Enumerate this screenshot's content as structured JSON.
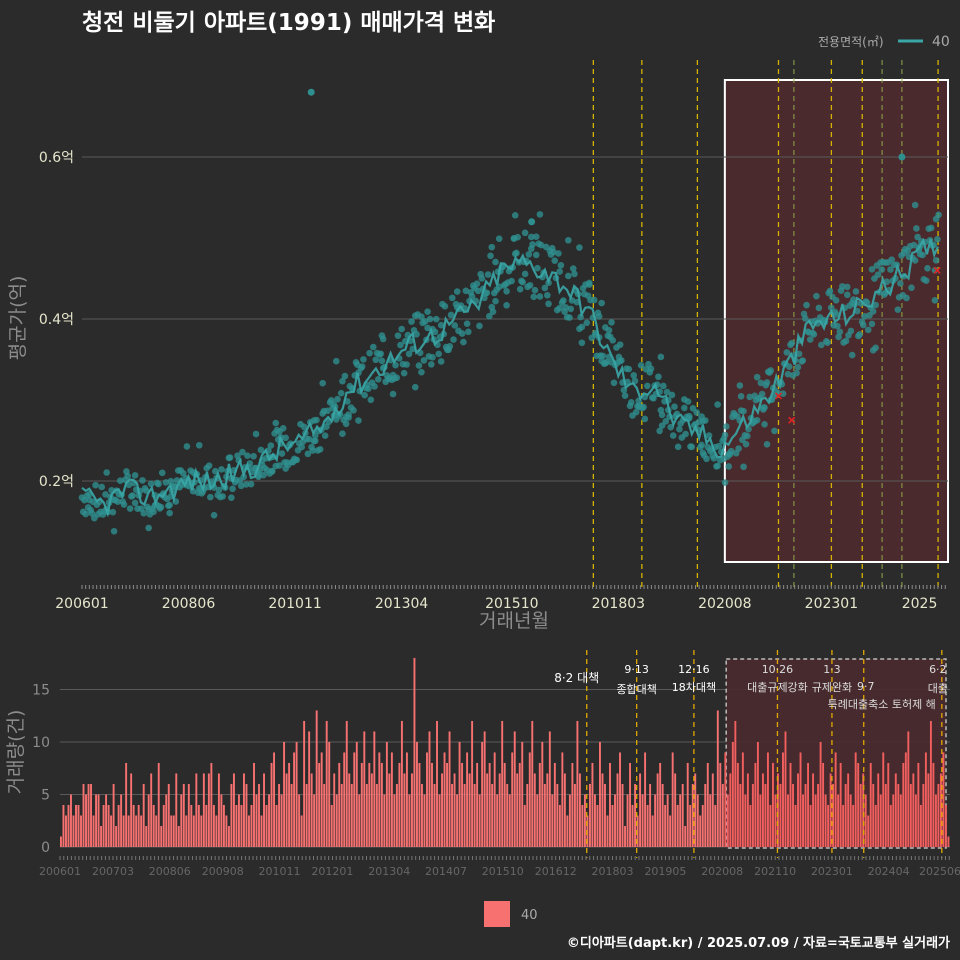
{
  "title": "청전 비둘기 아파트(1991) 매매가격 변화",
  "footer": "©디아파트(dapt.kr) / 2025.07.09 / 자료=국토교통부 실거래가",
  "colors": {
    "background": "#2b2b2c",
    "price_line": "#3aa6a6",
    "price_point": "#2f8f8f",
    "volume_bar": "#f87171",
    "highlight_fill": "#4a2a2d",
    "policy_line": "#d4b400",
    "grid": "#5a5a5a",
    "axis_text": "#e6e6cc",
    "title_text": "#ffffff",
    "marker_red": "#dd2222"
  },
  "chart_data": [
    {
      "type": "line",
      "title": "청전 비둘기 아파트(1991) 매매가격 변화",
      "xlabel": "거래년월",
      "ylabel": "평균가(억)",
      "x_ticks": [
        "200601",
        "200806",
        "201011",
        "201304",
        "201510",
        "201803",
        "202008",
        "202301",
        "2025"
      ],
      "y_ticks": [
        "0.2억",
        "0.4억",
        "0.6억"
      ],
      "ylim": [
        0.08,
        0.7
      ],
      "legend_title": "전용면적(㎡)",
      "legend_entry": "40",
      "legend_position": "top-right",
      "series": [
        {
          "name": "40",
          "x": [
            "2006.0",
            "2006.5",
            "2007.0",
            "2007.5",
            "2008.0",
            "2008.5",
            "2009.0",
            "2009.5",
            "2010.0",
            "2010.5",
            "2011.0",
            "2011.5",
            "2012.0",
            "2012.5",
            "2013.0",
            "2013.5",
            "2014.0",
            "2014.5",
            "2015.0",
            "2015.5",
            "2016.0",
            "2016.5",
            "2017.0",
            "2017.5",
            "2018.0",
            "2018.5",
            "2019.0",
            "2019.5",
            "2020.0",
            "2020.5",
            "2021.0",
            "2021.5",
            "2022.0",
            "2022.5",
            "2023.0",
            "2023.5",
            "2024.0",
            "2024.5",
            "2025.0",
            "2025.5"
          ],
          "values": [
            0.18,
            0.17,
            0.19,
            0.18,
            0.19,
            0.2,
            0.2,
            0.21,
            0.22,
            0.24,
            0.25,
            0.27,
            0.31,
            0.33,
            0.35,
            0.37,
            0.38,
            0.4,
            0.42,
            0.46,
            0.47,
            0.46,
            0.44,
            0.41,
            0.35,
            0.31,
            0.32,
            0.27,
            0.26,
            0.24,
            0.27,
            0.3,
            0.34,
            0.39,
            0.4,
            0.41,
            0.43,
            0.45,
            0.48,
            0.5
          ]
        }
      ],
      "outliers": [
        [
          2011.2,
          0.68
        ],
        [
          2016.2,
          0.52
        ],
        [
          2024.6,
          0.6
        ]
      ],
      "red_markers": [
        [
          2021.8,
          0.305
        ],
        [
          2022.1,
          0.275
        ],
        [
          2025.4,
          0.46
        ]
      ],
      "highlight_range": [
        "202008",
        "2025"
      ]
    },
    {
      "type": "bar",
      "xlabel": "",
      "ylabel": "거래량(건)",
      "x_ticks": [
        "200601",
        "200703",
        "200806",
        "200908",
        "201011",
        "201201",
        "201304",
        "201407",
        "201510",
        "201612",
        "201803",
        "201905",
        "202008",
        "202110",
        "202301",
        "202404",
        "202506"
      ],
      "y_ticks": [
        "0",
        "5",
        "10",
        "15"
      ],
      "ylim": [
        0,
        18
      ],
      "legend_entry": "40",
      "legend_position": "bottom",
      "series": [
        {
          "name": "40",
          "values": [
            1,
            4,
            3,
            4,
            5,
            3,
            4,
            4,
            3,
            6,
            5,
            6,
            6,
            3,
            5,
            5,
            2,
            4,
            5,
            4,
            3,
            6,
            2,
            4,
            5,
            3,
            8,
            3,
            7,
            4,
            3,
            4,
            3,
            6,
            2,
            5,
            7,
            4,
            3,
            8,
            2,
            4,
            5,
            6,
            3,
            3,
            7,
            2,
            5,
            6,
            3,
            6,
            4,
            3,
            7,
            4,
            3,
            7,
            4,
            7,
            8,
            4,
            3,
            7,
            5,
            4,
            3,
            2,
            6,
            7,
            4,
            5,
            4,
            7,
            6,
            3,
            4,
            8,
            5,
            6,
            3,
            7,
            4,
            5,
            8,
            9,
            4,
            6,
            5,
            10,
            7,
            8,
            6,
            9,
            10,
            5,
            3,
            12,
            6,
            11,
            7,
            5,
            13,
            8,
            9,
            6,
            12,
            10,
            4,
            7,
            5,
            8,
            6,
            9,
            12,
            7,
            6,
            9,
            10,
            5,
            8,
            11,
            6,
            8,
            7,
            11,
            6,
            9,
            8,
            5,
            10,
            7,
            9,
            5,
            6,
            8,
            12,
            7,
            9,
            5,
            7,
            18,
            10,
            8,
            6,
            5,
            9,
            11,
            8,
            6,
            12,
            5,
            7,
            9,
            8,
            11,
            6,
            7,
            5,
            10,
            8,
            6,
            9,
            7,
            12,
            6,
            8,
            5,
            10,
            11,
            7,
            8,
            6,
            9,
            5,
            7,
            12,
            8,
            6,
            5,
            9,
            11,
            7,
            8,
            10,
            4,
            6,
            9,
            12,
            7,
            5,
            8,
            10,
            6,
            7,
            11,
            5,
            8,
            6,
            4,
            9,
            7,
            3,
            5,
            8,
            6,
            12,
            7,
            4,
            5,
            3,
            6,
            8,
            5,
            4,
            10,
            7,
            6,
            3,
            8,
            4,
            5,
            7,
            9,
            6,
            2,
            5,
            8,
            4,
            6,
            3,
            7,
            5,
            9,
            4,
            6,
            3,
            5,
            7,
            8,
            6,
            4,
            5,
            3,
            9,
            7,
            4,
            5,
            6,
            2,
            8,
            4,
            6,
            7,
            5,
            3,
            4,
            6,
            8,
            5,
            7,
            4,
            13,
            8,
            6,
            9,
            5,
            7,
            10,
            12,
            8,
            6,
            9,
            5,
            7,
            4,
            6,
            8,
            10,
            5,
            7,
            6,
            9,
            4,
            8,
            5,
            7,
            6,
            9,
            11,
            5,
            8,
            6,
            4,
            7,
            9,
            5,
            6,
            8,
            4,
            7,
            5,
            6,
            10,
            8,
            5,
            4,
            7,
            6,
            9,
            5,
            8,
            4,
            6,
            7,
            5,
            4,
            9,
            8,
            6,
            7,
            5,
            3,
            8,
            6,
            4,
            7,
            5,
            9,
            6,
            8,
            4,
            5,
            7,
            6,
            5,
            8,
            9,
            11,
            6,
            7,
            5,
            8,
            4,
            6,
            9,
            7,
            12,
            8,
            5,
            6,
            7,
            9,
            4,
            1
          ]
        }
      ],
      "highlight_range": [
        "202008",
        "2025"
      ]
    }
  ],
  "policies": [
    {
      "date": "8·2",
      "label": "대책",
      "x": 2017.6
    },
    {
      "date": "9·13",
      "label": "종합대책",
      "x": 2018.7
    },
    {
      "date": "12·16",
      "label": "18차대책",
      "x": 2019.96
    },
    {
      "date": "10·26",
      "label": "대출규제강화",
      "x": 2021.8
    },
    {
      "date": "1·3",
      "label": "규제완화",
      "x": 2023.0
    },
    {
      "date": "9·7",
      "label": "특례대출축소 토허제 해",
      "x": 2023.7
    },
    {
      "date": "6·2",
      "label": "대출",
      "x": 2025.42
    }
  ]
}
